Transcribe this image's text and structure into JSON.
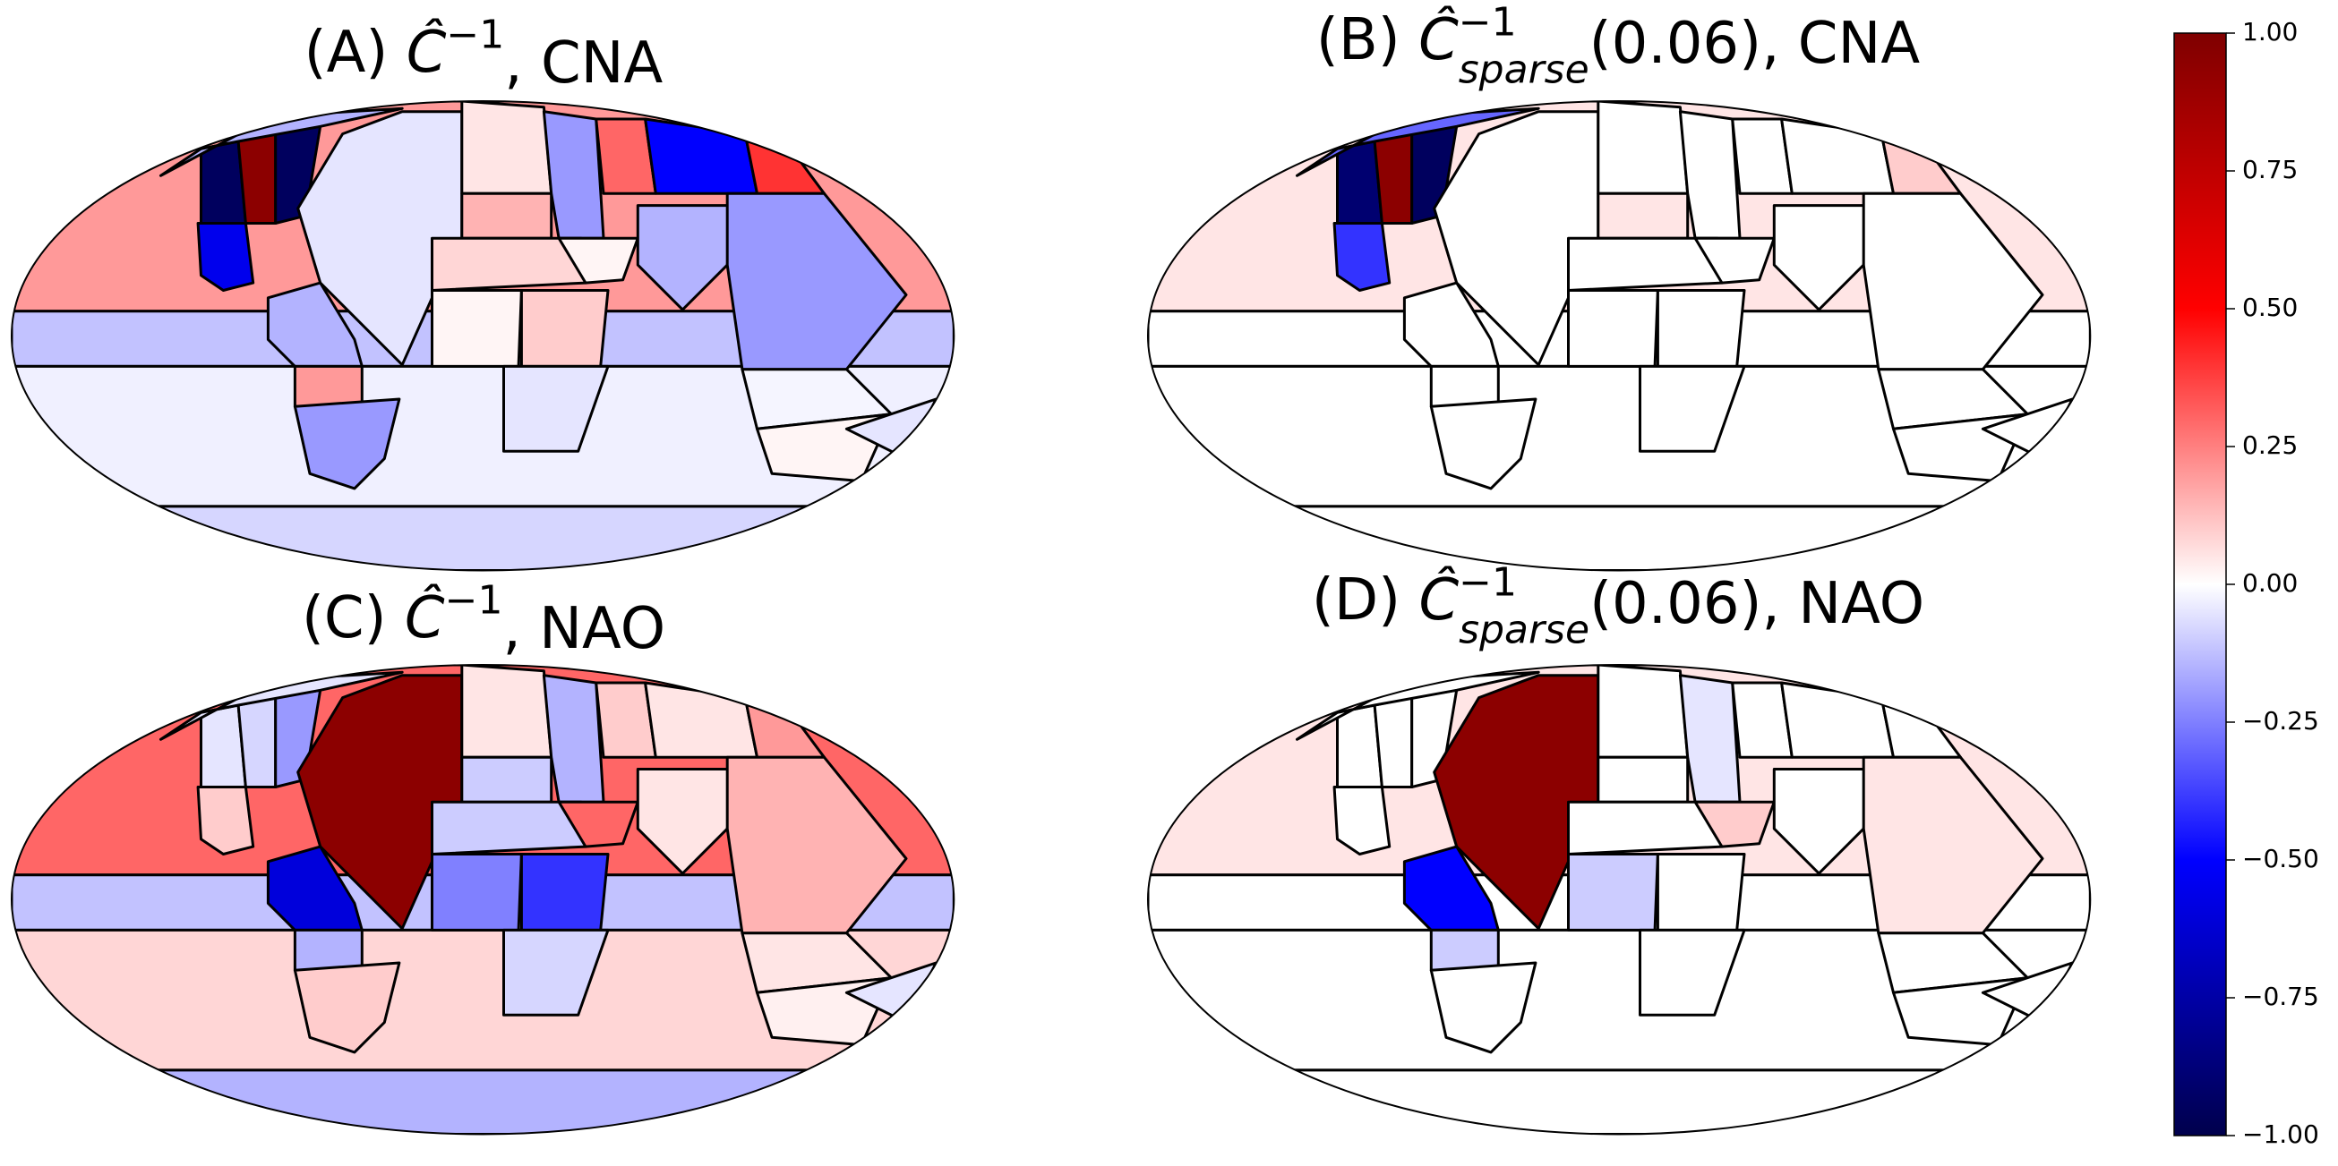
{
  "chart_data": [
    {
      "type": "map",
      "title": [
        {
          "text": "(A) "
        },
        {
          "text": "Ĉ"
        },
        {
          "text": "−1",
          "pos": "sup"
        },
        {
          "text": ", CNA"
        }
      ],
      "values": [
        0.2,
        -0.12,
        -0.03,
        -0.08,
        -0.95,
        0.95,
        -0.95,
        -0.55,
        -0.15,
        -0.05,
        0.05,
        0.15,
        -0.2,
        0.3,
        -0.5,
        0.4,
        0.08,
        0.02,
        -0.15,
        -0.2,
        0.02,
        0.1,
        -0.05,
        -0.15,
        0.2,
        -0.2,
        -0.02,
        0.02,
        -0.05
      ]
    },
    {
      "type": "map",
      "title": [
        {
          "text": "(B) "
        },
        {
          "text": "Ĉ"
        },
        {
          "text": "−1",
          "pos": "sup"
        },
        {
          "text": "sparse",
          "pos": "sub"
        },
        {
          "text": "(0.06), CNA"
        }
      ],
      "values": [
        0.05,
        0,
        0,
        0,
        -0.9,
        0.95,
        -0.95,
        -0.4,
        -0.3,
        0,
        0,
        0.05,
        0,
        0,
        0,
        0.1,
        0,
        0,
        0,
        0,
        0,
        0,
        0,
        0,
        0,
        0,
        0,
        0,
        0
      ]
    },
    {
      "type": "map",
      "title": [
        {
          "text": "(C) "
        },
        {
          "text": "Ĉ"
        },
        {
          "text": "−1",
          "pos": "sup"
        },
        {
          "text": ", NAO"
        }
      ],
      "values": [
        0.3,
        -0.12,
        0.08,
        -0.15,
        -0.05,
        -0.08,
        -0.2,
        0.1,
        -0.05,
        0.95,
        0.05,
        -0.1,
        -0.15,
        0.1,
        0.05,
        0.2,
        -0.1,
        0.3,
        0.05,
        0.15,
        -0.25,
        -0.4,
        -0.08,
        -0.6,
        -0.15,
        0.1,
        0.05,
        0.03,
        -0.05
      ]
    },
    {
      "type": "map",
      "title": [
        {
          "text": "(D) "
        },
        {
          "text": "Ĉ"
        },
        {
          "text": "−1",
          "pos": "sup"
        },
        {
          "text": "sparse",
          "pos": "sub"
        },
        {
          "text": "(0.06), NAO"
        }
      ],
      "values": [
        0.05,
        0,
        0,
        0,
        0,
        0,
        0,
        0,
        0,
        0.95,
        0,
        0,
        -0.05,
        0,
        0,
        0,
        0,
        0.1,
        0,
        0.05,
        -0.1,
        0,
        0,
        -0.5,
        -0.1,
        0,
        0,
        0,
        0
      ]
    },
    {
      "type": "colorbar",
      "vlim": [
        -1,
        1
      ],
      "colors": [
        "#00004c",
        "#0000ff",
        "#ffffff",
        "#ff0000",
        "#7f0000"
      ],
      "ticks": [
        {
          "value": -1,
          "label": "−1.00"
        },
        {
          "value": -0.75,
          "label": "−0.75"
        },
        {
          "value": -0.5,
          "label": "−0.50"
        },
        {
          "value": -0.25,
          "label": "−0.25"
        },
        {
          "value": 0,
          "label": "0.00"
        },
        {
          "value": 0.25,
          "label": "0.25"
        },
        {
          "value": 0.5,
          "label": "0.50"
        },
        {
          "value": 0.75,
          "label": "0.75"
        },
        {
          "value": 1,
          "label": "1.00"
        }
      ]
    }
  ]
}
